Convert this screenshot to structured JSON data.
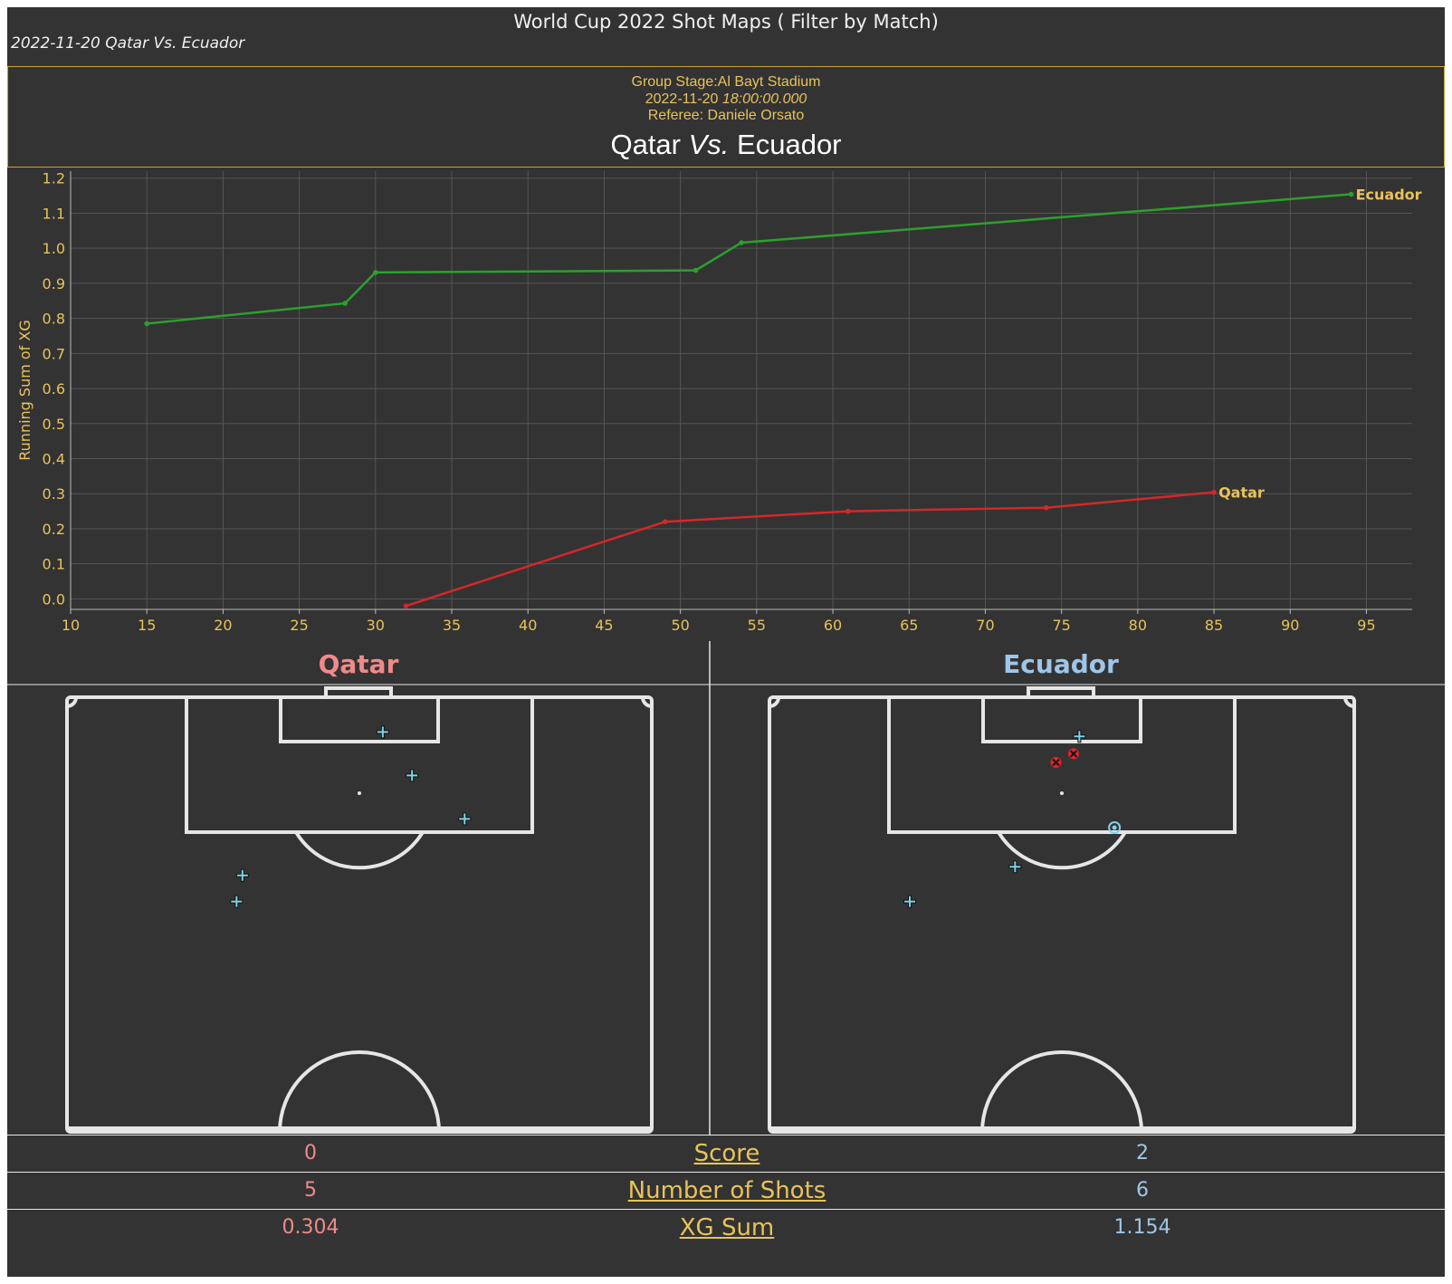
{
  "title": "World Cup 2022 Shot Maps ( Filter by Match)",
  "subtitle": "2022-11-20 Qatar Vs. Ecuador",
  "header": {
    "stage_venue": "Group Stage:Al Bayt Stadium",
    "date": "2022-11-20",
    "time": "18:00:00.000",
    "referee": "Referee: Daniele Orsato",
    "home": "Qatar",
    "vs": "Vs.",
    "away": "Ecuador"
  },
  "colors": {
    "background": "#333333",
    "accent": "#e8c35a",
    "home": "#f08a8a",
    "away": "#9ec6e8",
    "home_line": "#d62728",
    "away_line": "#2ca02c",
    "shot_marker": "#7fd3e8",
    "goal_marker": "#e8212c"
  },
  "chart_data": [
    {
      "type": "line",
      "ylabel": "Running Sum of XG",
      "xlim": [
        10,
        98
      ],
      "ylim": [
        -0.03,
        1.22
      ],
      "x_ticks": [
        "10",
        "15",
        "20",
        "25",
        "30",
        "35",
        "40",
        "45",
        "50",
        "55",
        "60",
        "65",
        "70",
        "75",
        "80",
        "85",
        "90",
        "95"
      ],
      "y_ticks": [
        "0.0",
        "0.1",
        "0.2",
        "0.3",
        "0.4",
        "0.5",
        "0.6",
        "0.7",
        "0.8",
        "0.9",
        "1.0",
        "1.1",
        "1.2"
      ],
      "grid": true,
      "series": [
        {
          "name": "Ecuador",
          "color": "#2ca02c",
          "x": [
            15,
            28,
            30,
            51,
            54,
            94
          ],
          "y": [
            0.785,
            0.843,
            0.931,
            0.937,
            1.016,
            1.154
          ]
        },
        {
          "name": "Qatar",
          "color": "#d62728",
          "x": [
            32,
            49,
            61,
            74,
            85
          ],
          "y": [
            -0.02,
            0.22,
            0.25,
            0.26,
            0.304
          ]
        }
      ]
    },
    {
      "type": "scatter",
      "team": "Qatar",
      "shots": [
        {
          "x": 0.54,
          "y": 0.08,
          "outcome": "shot"
        },
        {
          "x": 0.59,
          "y": 0.18,
          "outcome": "shot"
        },
        {
          "x": 0.68,
          "y": 0.28,
          "outcome": "shot"
        },
        {
          "x": 0.3,
          "y": 0.41,
          "outcome": "shot"
        },
        {
          "x": 0.29,
          "y": 0.47,
          "outcome": "shot"
        }
      ]
    },
    {
      "type": "scatter",
      "team": "Ecuador",
      "shots": [
        {
          "x": 0.53,
          "y": 0.09,
          "outcome": "shot"
        },
        {
          "x": 0.52,
          "y": 0.13,
          "outcome": "goal"
        },
        {
          "x": 0.49,
          "y": 0.15,
          "outcome": "goal"
        },
        {
          "x": 0.59,
          "y": 0.3,
          "outcome": "saved"
        },
        {
          "x": 0.42,
          "y": 0.39,
          "outcome": "shot"
        },
        {
          "x": 0.24,
          "y": 0.47,
          "outcome": "shot"
        }
      ]
    }
  ],
  "stats": {
    "rows": [
      {
        "label": "Score",
        "home": "0",
        "away": "2"
      },
      {
        "label": "Number of Shots",
        "home": "5",
        "away": "6"
      },
      {
        "label": "XG Sum",
        "home": "0.304",
        "away": "1.154"
      }
    ]
  }
}
